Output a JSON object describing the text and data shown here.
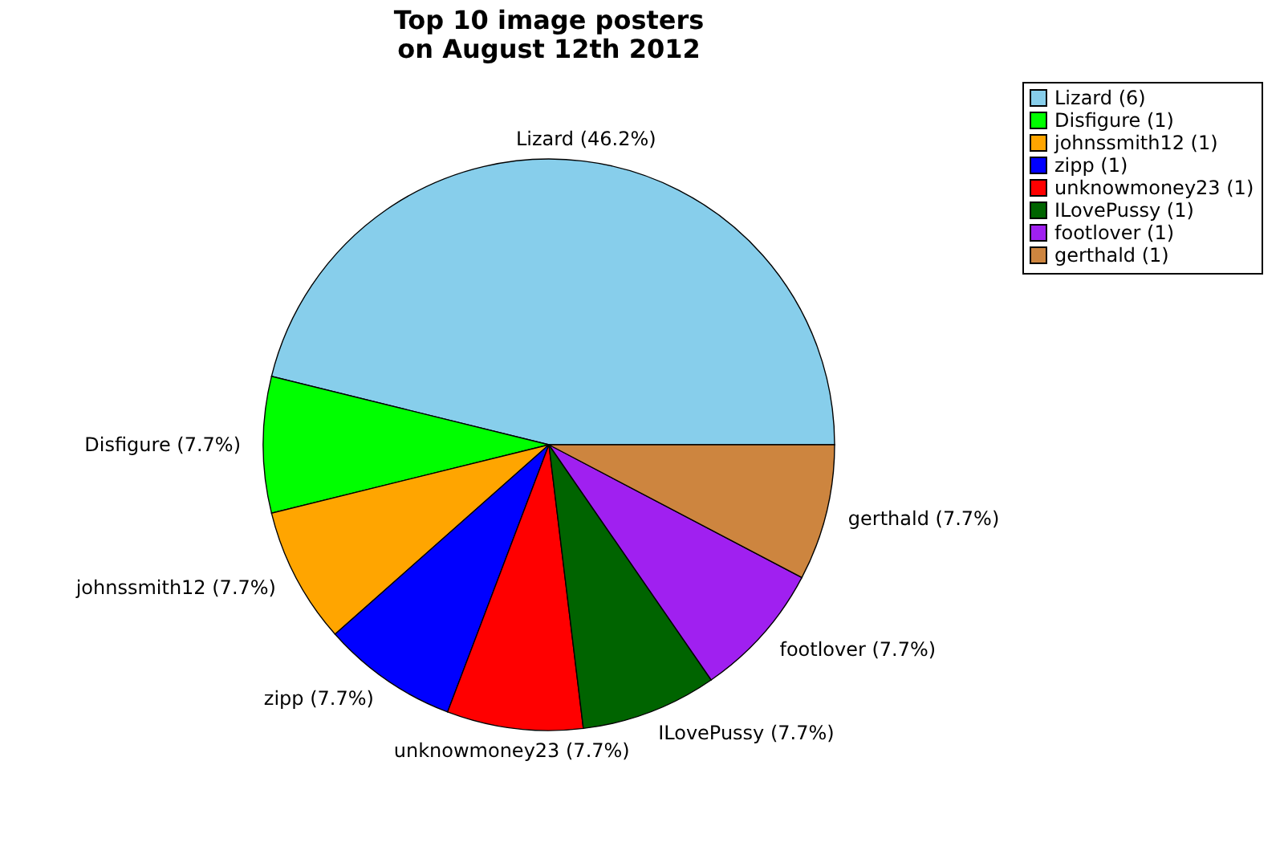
{
  "chart_data": {
    "type": "pie",
    "title": "Top 10 image posters\non August 12th 2012",
    "categories": [
      "Lizard (6)",
      "Disfigure (1)",
      "johnssmith12 (1)",
      "zipp (1)",
      "unknowmoney23 (1)",
      "ILovePussy (1)",
      "footlover (1)",
      "gerthald (1)"
    ],
    "values": [
      46.2,
      7.7,
      7.7,
      7.7,
      7.7,
      7.7,
      7.7,
      7.7
    ],
    "value_labels": [
      "Lizard (46.2%)",
      "Disfigure (7.7%)",
      "johnssmith12 (7.7%)",
      "zipp (7.7%)",
      "unknowmoney23 (7.7%)",
      "ILovePussy (7.7%)",
      "footlover (7.7%)",
      "gerthald (7.7%)"
    ],
    "colors": [
      "#87ceeb",
      "#00ff00",
      "#ffa500",
      "#0000ff",
      "#ff0000",
      "#006400",
      "#a020f0",
      "#cd853f"
    ],
    "legend": "top right"
  }
}
